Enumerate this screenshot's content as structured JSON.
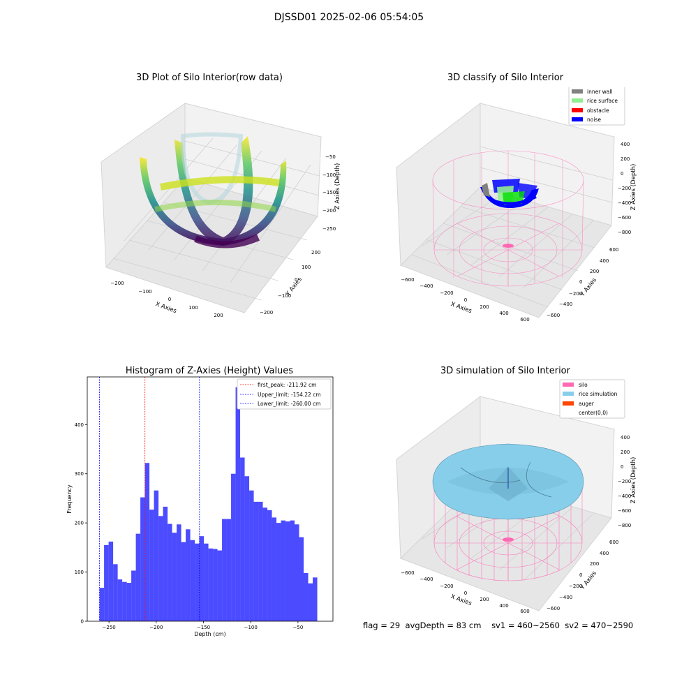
{
  "figure": {
    "suptitle": "DJSSD01 2025-02-06 05:54:05",
    "status": {
      "flag": "flag = 29",
      "avg_depth": "avgDepth = 83 cm",
      "sv1": "sv1 = 460~2560",
      "sv2": "sv2 = 470~2590"
    }
  },
  "colors": {
    "inner_wall": "#808080",
    "rice_surface": "#90ee90",
    "obstacle": "#ff0000",
    "noise": "#0000ff",
    "silo": "#ff69b4",
    "rice_simulation": "#87ceeb",
    "auger": "#ff4500",
    "histogram_bar": "#4b4bff",
    "first_peak_line": "#ff0000",
    "limit_lines": "#0000ff"
  },
  "chart_data": [
    {
      "type": "scatter3d",
      "title": "3D Plot of Silo Interior(row data)",
      "xlabel": "X Axies",
      "ylabel": "Y Axies",
      "zlabel": "Z Axies (Depth)",
      "x_ticks": [
        "−200",
        "−100",
        "0",
        "100",
        "200"
      ],
      "y_ticks": [
        "−200",
        "−100",
        "0",
        "100",
        "200"
      ],
      "z_ticks": [
        "−50",
        "−100",
        "−150",
        "−200",
        "−250"
      ],
      "colormap": "viridis"
    },
    {
      "type": "scatter3d",
      "title": "3D classify of Silo Interior",
      "xlabel": "X Axies",
      "ylabel": "Y Axies",
      "zlabel": "Z Axies (Depth)",
      "x_ticks": [
        "−600",
        "−400",
        "−200",
        "0",
        "200",
        "400",
        "600"
      ],
      "y_ticks": [
        "−600",
        "−400",
        "−200",
        "0",
        "200",
        "400",
        "600"
      ],
      "z_ticks": [
        "400",
        "200",
        "0",
        "−200",
        "−400",
        "−600",
        "−800"
      ],
      "legend": {
        "placement": "upper right",
        "entries": [
          {
            "label": "inner wall",
            "color": "#808080"
          },
          {
            "label": "rice surface",
            "color": "#90ee90"
          },
          {
            "label": "obstacle",
            "color": "#ff0000"
          },
          {
            "label": "noise",
            "color": "#0000ff"
          }
        ]
      }
    },
    {
      "type": "bar",
      "subtype": "histogram",
      "title": "Histogram of Z-Axies (Height) Values",
      "xlabel": "Depth (cm)",
      "ylabel": "Frequency",
      "xlim": [
        -273,
        -13
      ],
      "ylim": [
        0,
        497
      ],
      "x_ticks": [
        -250,
        -200,
        -150,
        -100,
        -50
      ],
      "x_tick_labels": [
        "−250",
        "−200",
        "−150",
        "−100",
        "−50"
      ],
      "y_ticks": [
        0,
        100,
        200,
        300,
        400
      ],
      "y_tick_labels": [
        "0",
        "100",
        "200",
        "300",
        "400"
      ],
      "bin_start": -260,
      "bin_width": 4.8,
      "values": [
        68,
        155,
        162,
        116,
        85,
        80,
        78,
        103,
        178,
        252,
        322,
        227,
        266,
        214,
        233,
        198,
        180,
        197,
        161,
        187,
        165,
        158,
        173,
        158,
        148,
        147,
        144,
        208,
        208,
        300,
        476,
        333,
        295,
        266,
        243,
        243,
        231,
        226,
        211,
        200,
        205,
        203,
        205,
        197,
        171,
        98,
        77,
        89
      ],
      "reference_lines": [
        {
          "x": -211.92,
          "label": "first_peak: -211.92 cm",
          "color": "#ff0000"
        },
        {
          "x": -154.22,
          "label": "Upper_limit: -154.22 cm",
          "color": "#0000ff"
        },
        {
          "x": -260.0,
          "label": "Lower_limit: -260.00 cm",
          "color": "#0000ff"
        }
      ],
      "legend": {
        "placement": "upper right"
      },
      "grid": false
    },
    {
      "type": "surface3d",
      "title": "3D simulation of Silo Interior",
      "xlabel": "X Axies",
      "ylabel": "Y Axies",
      "zlabel": "Z Axies (Depth)",
      "x_ticks": [
        "−600",
        "−400",
        "−200",
        "0",
        "200",
        "400",
        "600"
      ],
      "y_ticks": [
        "−600",
        "−400",
        "−200",
        "0",
        "200",
        "400",
        "600"
      ],
      "z_ticks": [
        "400",
        "200",
        "0",
        "−200",
        "−400",
        "−600",
        "−800"
      ],
      "legend": {
        "placement": "upper right",
        "entries": [
          {
            "label": "silo",
            "color": "#ff69b4"
          },
          {
            "label": "rice simulation",
            "color": "#87ceeb"
          },
          {
            "label": "auger",
            "color": "#ff4500"
          },
          {
            "label": "center(0,0)",
            "color": ""
          }
        ]
      }
    }
  ]
}
